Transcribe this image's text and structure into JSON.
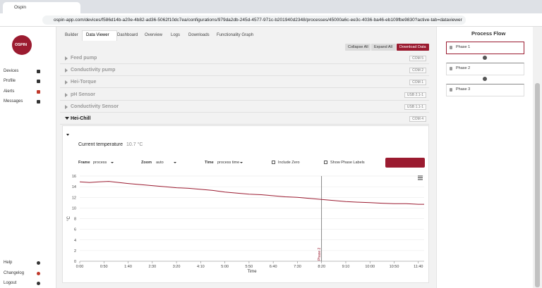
{
  "browser": {
    "tab_title": "Ospin",
    "url": "ospin-app.com/devices/f586d14b-a20e-4b82-ad36-5062f10dc7ea/configurations/979da2db-245d-4577-971c-b201940d2348/processes/45000a6c-ee3c-4036-ba46-eb109fbe9830?active-tab=dataviewer"
  },
  "sidebar": {
    "logo": "OSPIN",
    "nav": [
      "Devices",
      "Profile",
      "Alerts",
      "Messages"
    ],
    "footer": [
      "Help",
      "Changelog",
      "Logout"
    ]
  },
  "tabs": [
    "Builder",
    "Data Viewer",
    "Dashboard",
    "Overview",
    "Logs",
    "Downloads",
    "Functionality Graph"
  ],
  "active_tab": 1,
  "toolbar": [
    "Collapse All",
    "Expand All",
    "Download Data"
  ],
  "devices": [
    {
      "name": "Feed pump",
      "port": "COM 5"
    },
    {
      "name": "Conductivity pump",
      "port": "COM 2"
    },
    {
      "name": "Hei-Torque",
      "port": "COM 1"
    },
    {
      "name": "pH Sensor",
      "port": "USB 2.1-1"
    },
    {
      "name": "Conductivity Sensor",
      "port": "USB 1.1-1"
    },
    {
      "name": "Hei-Chill",
      "port": "COM 4",
      "expanded": true
    }
  ],
  "device_panel": {
    "label": "Current temperature",
    "value": "10.7 °C",
    "controls": [
      {
        "label": "Frame",
        "value": "process"
      },
      {
        "label": "Zoom",
        "value": "auto"
      },
      {
        "label": "Time",
        "value": "process time"
      }
    ],
    "checkboxes": [
      "Include Zero",
      "Show Phase Labels"
    ]
  },
  "chart_data": {
    "type": "line",
    "xlabel": "Time",
    "ylabel": "°C",
    "xlim": [
      0,
      712
    ],
    "ylim": [
      0,
      16
    ],
    "xticks": [
      {
        "value": 0,
        "label": "0:00"
      },
      {
        "value": 50,
        "label": "0:50"
      },
      {
        "value": 100,
        "label": "1:40"
      },
      {
        "value": 150,
        "label": "2:30"
      },
      {
        "value": 200,
        "label": "3:20"
      },
      {
        "value": 250,
        "label": "4:10"
      },
      {
        "value": 300,
        "label": "5:00"
      },
      {
        "value": 350,
        "label": "5:50"
      },
      {
        "value": 400,
        "label": "6:40"
      },
      {
        "value": 450,
        "label": "7:30"
      },
      {
        "value": 500,
        "label": "8:20"
      },
      {
        "value": 550,
        "label": "9:10"
      },
      {
        "value": 600,
        "label": "10:00"
      },
      {
        "value": 650,
        "label": "10:50"
      },
      {
        "value": 700,
        "label": "11:40"
      }
    ],
    "yticks": [
      0,
      2,
      4,
      6,
      8,
      10,
      12,
      14,
      16
    ],
    "grid": true,
    "color": "#9b1b30",
    "x": [
      0,
      20,
      40,
      60,
      80,
      100,
      125,
      150,
      175,
      200,
      225,
      250,
      275,
      300,
      325,
      350,
      375,
      400,
      425,
      450,
      475,
      500,
      525,
      550,
      575,
      600,
      625,
      650,
      675,
      700,
      712
    ],
    "values": [
      14.9,
      14.8,
      14.9,
      15.0,
      14.8,
      14.6,
      14.4,
      14.2,
      14.0,
      13.8,
      13.7,
      13.5,
      13.3,
      13.0,
      12.8,
      12.6,
      12.5,
      12.3,
      12.1,
      12.0,
      11.8,
      11.6,
      11.4,
      11.2,
      11.1,
      11.0,
      10.9,
      10.8,
      10.8,
      10.7,
      10.7
    ],
    "annotations": [
      {
        "x": 500,
        "label": "Phase 2"
      }
    ]
  },
  "process_flow": {
    "title": "Process Flow",
    "phases": [
      "Phase 1",
      "Phase 2",
      "Phase 3"
    ]
  }
}
